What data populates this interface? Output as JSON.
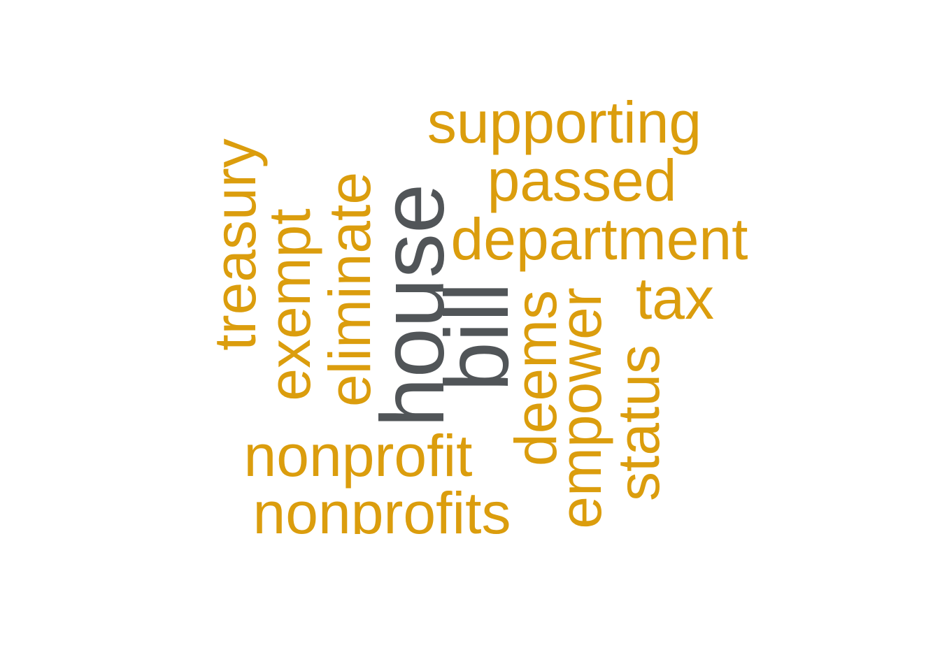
{
  "colors": {
    "top_words": "#515558",
    "other_words": "#DB9D0D",
    "background": "#FFFFFF"
  },
  "words": {
    "supporting": "supporting",
    "passed": "passed",
    "department": "department",
    "tax": "tax",
    "treasury": "treasury",
    "exempt": "exempt",
    "eliminate": "eliminate",
    "house": "house",
    "bill": "bill",
    "deems": "deems",
    "empower": "empower",
    "status": "status",
    "nonprofit": "nonprofit",
    "nonprofits": "nonprofits"
  },
  "word_tiers": {
    "top": [
      "house",
      "bill"
    ],
    "other": [
      "supporting",
      "passed",
      "department",
      "tax",
      "treasury",
      "exempt",
      "eliminate",
      "deems",
      "empower",
      "status",
      "nonprofit",
      "nonprofits"
    ]
  }
}
